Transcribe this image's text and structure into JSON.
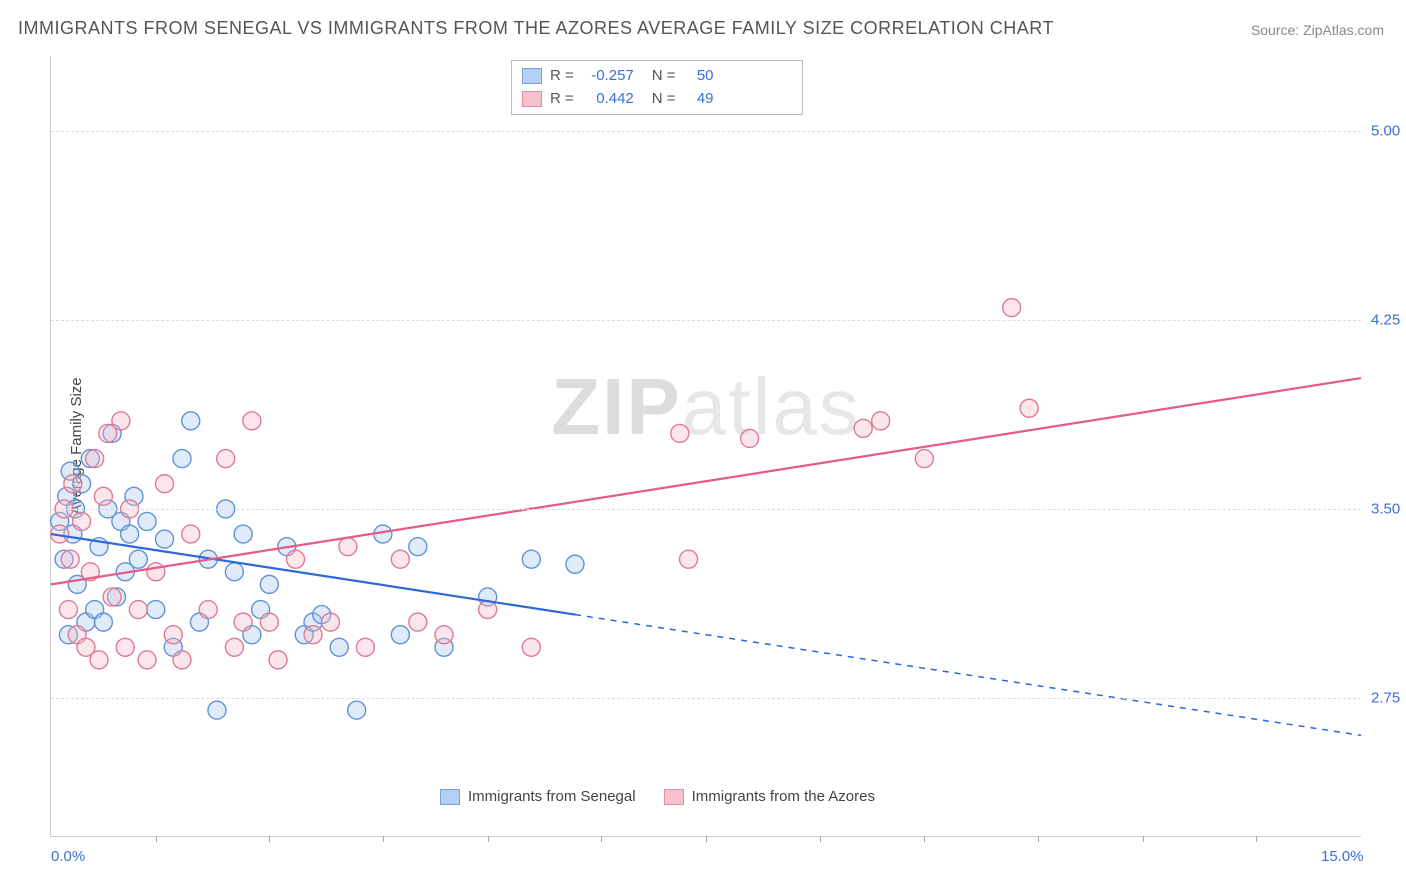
{
  "title": "IMMIGRANTS FROM SENEGAL VS IMMIGRANTS FROM THE AZORES AVERAGE FAMILY SIZE CORRELATION CHART",
  "source_label": "Source:",
  "source_name": "ZipAtlas.com",
  "watermark": "ZIPatlas",
  "ylabel": "Average Family Size",
  "chart": {
    "type": "scatter",
    "xlim": [
      0,
      15
    ],
    "ylim": [
      2.2,
      5.3
    ],
    "x_ticks": [
      0.0,
      15.0
    ],
    "x_tick_labels": [
      "0.0%",
      "15.0%"
    ],
    "y_ticks": [
      2.75,
      3.5,
      4.25,
      5.0
    ],
    "y_tick_labels": [
      "2.75",
      "3.50",
      "4.25",
      "5.00"
    ],
    "x_minor_ticks": [
      1.2,
      2.5,
      3.8,
      5.0,
      6.3,
      7.5,
      8.8,
      10.0,
      11.3,
      12.5,
      13.8
    ],
    "grid_color": "#dddddd",
    "axis_color": "#cccccc",
    "background_color": "#ffffff",
    "label_fontsize": 15,
    "tick_color": "#3b6fd8",
    "marker_radius": 9,
    "marker_fill_opacity": 0.35,
    "marker_stroke_width": 1.4,
    "line_width": 2.2,
    "series": [
      {
        "name": "Immigrants from Senegal",
        "color_fill": "#a7c7f2",
        "color_stroke": "#5f93d6",
        "line_color": "#2b68d8",
        "r_value": "-0.257",
        "n_value": "50",
        "regression": {
          "x1": 0,
          "y1": 3.4,
          "x2_solid": 6.0,
          "y2_solid": 3.08,
          "x2_dash": 15,
          "y2_dash": 2.6
        },
        "points": [
          [
            0.1,
            3.45
          ],
          [
            0.15,
            3.3
          ],
          [
            0.18,
            3.55
          ],
          [
            0.2,
            3.0
          ],
          [
            0.22,
            3.65
          ],
          [
            0.25,
            3.4
          ],
          [
            0.28,
            3.5
          ],
          [
            0.3,
            3.2
          ],
          [
            0.35,
            3.6
          ],
          [
            0.4,
            3.05
          ],
          [
            0.45,
            3.7
          ],
          [
            0.5,
            3.1
          ],
          [
            0.55,
            3.35
          ],
          [
            0.6,
            3.05
          ],
          [
            0.65,
            3.5
          ],
          [
            0.7,
            3.8
          ],
          [
            0.75,
            3.15
          ],
          [
            0.8,
            3.45
          ],
          [
            0.85,
            3.25
          ],
          [
            0.9,
            3.4
          ],
          [
            0.95,
            3.55
          ],
          [
            1.0,
            3.3
          ],
          [
            1.1,
            3.45
          ],
          [
            1.2,
            3.1
          ],
          [
            1.3,
            3.38
          ],
          [
            1.4,
            2.95
          ],
          [
            1.5,
            3.7
          ],
          [
            1.6,
            3.85
          ],
          [
            1.7,
            3.05
          ],
          [
            1.8,
            3.3
          ],
          [
            1.9,
            2.7
          ],
          [
            2.0,
            3.5
          ],
          [
            2.1,
            3.25
          ],
          [
            2.2,
            3.4
          ],
          [
            2.3,
            3.0
          ],
          [
            2.4,
            3.1
          ],
          [
            2.5,
            3.2
          ],
          [
            2.7,
            3.35
          ],
          [
            2.9,
            3.0
          ],
          [
            3.0,
            3.05
          ],
          [
            3.1,
            3.08
          ],
          [
            3.3,
            2.95
          ],
          [
            3.5,
            2.7
          ],
          [
            3.8,
            3.4
          ],
          [
            4.0,
            3.0
          ],
          [
            4.2,
            3.35
          ],
          [
            4.5,
            2.95
          ],
          [
            5.0,
            3.15
          ],
          [
            5.5,
            3.3
          ],
          [
            6.0,
            3.28
          ]
        ]
      },
      {
        "name": "Immigrants from the Azores",
        "color_fill": "#f4b8c6",
        "color_stroke": "#e07a94",
        "line_color": "#e65a85",
        "r_value": "0.442",
        "n_value": "49",
        "regression": {
          "x1": 0,
          "y1": 3.2,
          "x2_solid": 15,
          "y2_solid": 4.02,
          "x2_dash": 15,
          "y2_dash": 4.02
        },
        "points": [
          [
            0.1,
            3.4
          ],
          [
            0.15,
            3.5
          ],
          [
            0.2,
            3.1
          ],
          [
            0.22,
            3.3
          ],
          [
            0.25,
            3.6
          ],
          [
            0.3,
            3.0
          ],
          [
            0.35,
            3.45
          ],
          [
            0.4,
            2.95
          ],
          [
            0.45,
            3.25
          ],
          [
            0.5,
            3.7
          ],
          [
            0.55,
            2.9
          ],
          [
            0.6,
            3.55
          ],
          [
            0.65,
            3.8
          ],
          [
            0.7,
            3.15
          ],
          [
            0.8,
            3.85
          ],
          [
            0.85,
            2.95
          ],
          [
            0.9,
            3.5
          ],
          [
            1.0,
            3.1
          ],
          [
            1.1,
            2.9
          ],
          [
            1.2,
            3.25
          ],
          [
            1.3,
            3.6
          ],
          [
            1.4,
            3.0
          ],
          [
            1.5,
            2.9
          ],
          [
            1.6,
            3.4
          ],
          [
            1.8,
            3.1
          ],
          [
            2.0,
            3.7
          ],
          [
            2.1,
            2.95
          ],
          [
            2.2,
            3.05
          ],
          [
            2.3,
            3.85
          ],
          [
            2.5,
            3.05
          ],
          [
            2.6,
            2.9
          ],
          [
            2.8,
            3.3
          ],
          [
            3.0,
            3.0
          ],
          [
            3.2,
            3.05
          ],
          [
            3.4,
            3.35
          ],
          [
            3.6,
            2.95
          ],
          [
            4.0,
            3.3
          ],
          [
            4.2,
            3.05
          ],
          [
            4.5,
            3.0
          ],
          [
            5.0,
            3.1
          ],
          [
            5.5,
            2.95
          ],
          [
            7.2,
            3.8
          ],
          [
            7.3,
            3.3
          ],
          [
            8.0,
            3.78
          ],
          [
            9.3,
            3.82
          ],
          [
            9.5,
            3.85
          ],
          [
            10.0,
            3.7
          ],
          [
            11.0,
            4.3
          ],
          [
            11.2,
            3.9
          ]
        ]
      }
    ]
  },
  "legend_stats_rows": [
    {
      "series_idx": 0
    },
    {
      "series_idx": 1
    }
  ],
  "legend_label_R": "R =",
  "legend_label_N": "N ="
}
